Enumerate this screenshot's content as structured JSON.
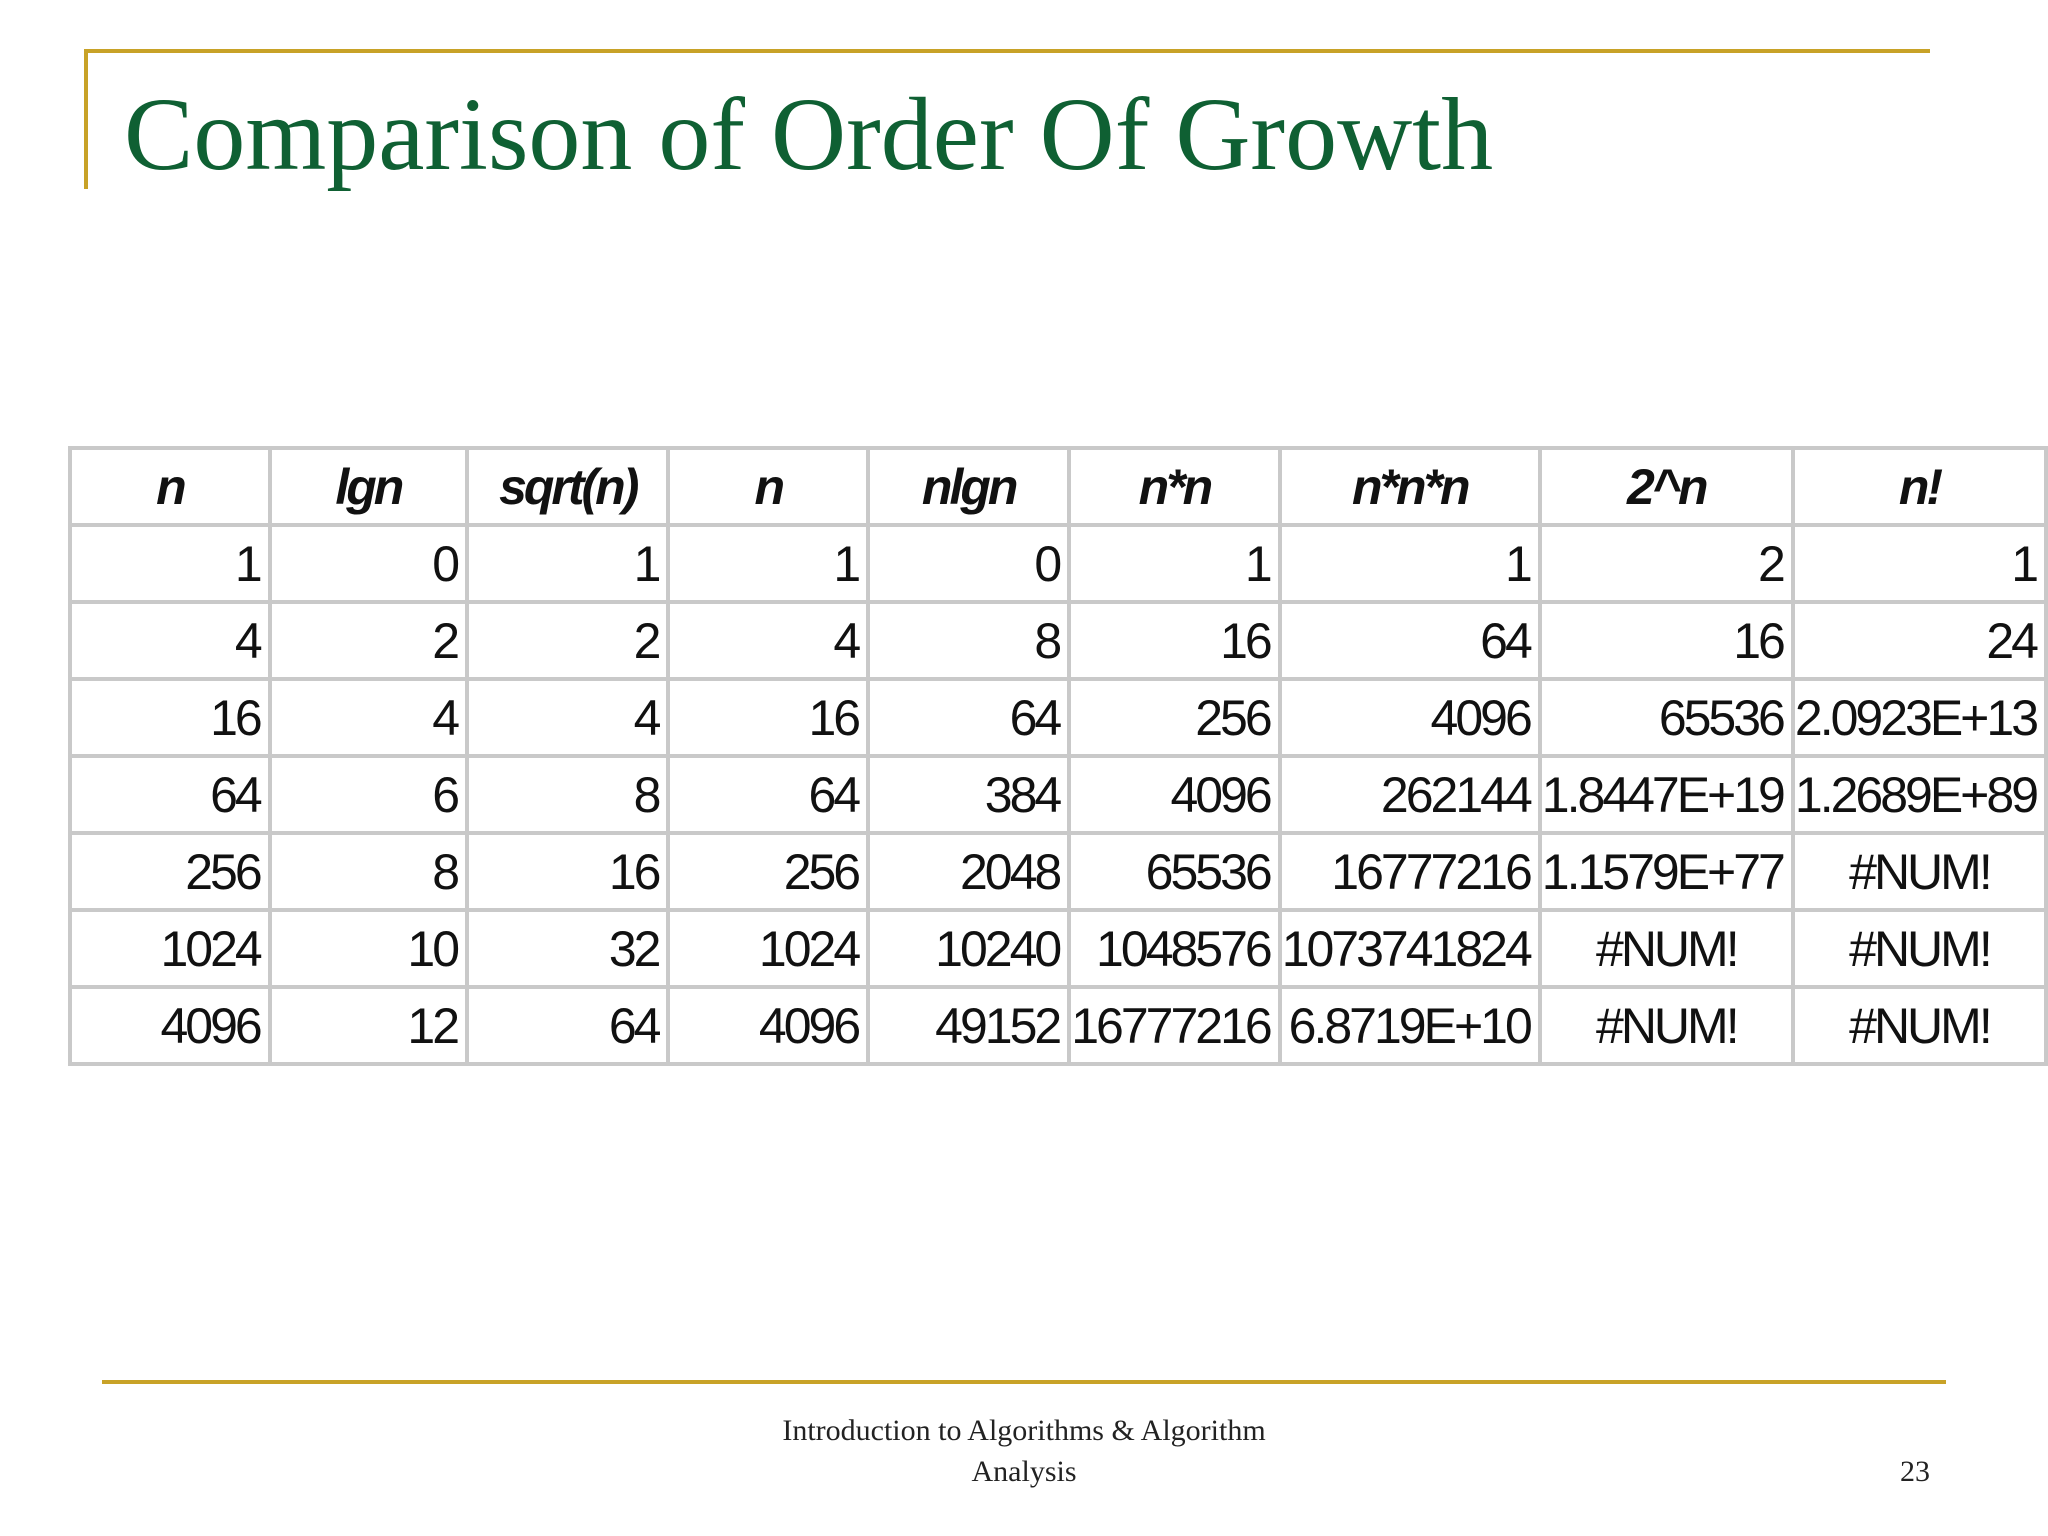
{
  "slide": {
    "title": "Comparison of Order Of Growth",
    "footer_line1": "Introduction to Algorithms & Algorithm",
    "footer_line2": "Analysis",
    "page_number": "23"
  },
  "colors": {
    "title": "#0f6033",
    "accent_lines": "#c8a227",
    "table_border": "#c9c9c9"
  },
  "table": {
    "headers": [
      "n",
      "lgn",
      "sqrt(n)",
      "n",
      "nlgn",
      "n*n",
      "n*n*n",
      "2^n",
      "n!"
    ],
    "rows": [
      [
        "1",
        "0",
        "1",
        "1",
        "0",
        "1",
        "1",
        "2",
        "1"
      ],
      [
        "4",
        "2",
        "2",
        "4",
        "8",
        "16",
        "64",
        "16",
        "24"
      ],
      [
        "16",
        "4",
        "4",
        "16",
        "64",
        "256",
        "4096",
        "65536",
        "2.0923E+13"
      ],
      [
        "64",
        "6",
        "8",
        "64",
        "384",
        "4096",
        "262144",
        "1.8447E+19",
        "1.2689E+89"
      ],
      [
        "256",
        "8",
        "16",
        "256",
        "2048",
        "65536",
        "16777216",
        "1.1579E+77",
        "#NUM!"
      ],
      [
        "1024",
        "10",
        "32",
        "1024",
        "10240",
        "1048576",
        "1073741824",
        "#NUM!",
        "#NUM!"
      ],
      [
        "4096",
        "12",
        "64",
        "4096",
        "49152",
        "16777216",
        "6.8719E+10",
        "#NUM!",
        "#NUM!"
      ]
    ]
  }
}
